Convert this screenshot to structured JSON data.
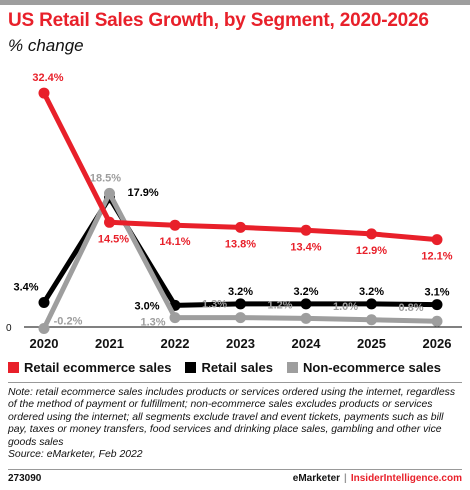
{
  "header": {
    "title": "US Retail Sales Growth, by Segment, 2020-2026",
    "subtitle": "% change"
  },
  "chart_data": {
    "type": "line",
    "title": "US Retail Sales Growth, by Segment, 2020-2026",
    "subtitle": "% change",
    "x": [
      "2020",
      "2021",
      "2022",
      "2023",
      "2024",
      "2025",
      "2026"
    ],
    "zero_label": "0",
    "ylim": [
      -1,
      34
    ],
    "grid": false,
    "legend_position": "bottom",
    "series": [
      {
        "name": "Retail ecommerce sales",
        "color": "#e8202a",
        "values": [
          32.4,
          14.5,
          14.1,
          13.8,
          13.4,
          12.9,
          12.1
        ],
        "labels": [
          "32.4%",
          "14.5%",
          "14.1%",
          "13.8%",
          "13.4%",
          "12.9%",
          "12.1%"
        ]
      },
      {
        "name": "Retail sales",
        "color": "#000000",
        "values": [
          3.4,
          17.9,
          3.0,
          3.2,
          3.2,
          3.2,
          3.1
        ],
        "labels": [
          "3.4%",
          "17.9%",
          "3.0%",
          "3.2%",
          "3.2%",
          "3.2%",
          "3.1%"
        ]
      },
      {
        "name": "Non-ecommerce sales",
        "color": "#9e9e9e",
        "values": [
          -0.2,
          18.5,
          1.3,
          1.3,
          1.2,
          1.0,
          0.8
        ],
        "labels": [
          "-0.2%",
          "18.5%",
          "1.3%",
          "1.3%",
          "1.2%",
          "1.0%",
          "0.8%"
        ]
      }
    ]
  },
  "note": {
    "text": "Note: retail ecommerce sales includes products or services ordered using the internet, regardless of the method of payment or fulfillment; non-ecommerce sales excludes products or services ordered using the internet; all segments exclude travel and event tickets, payments such as bill pay, taxes or money transfers, food services and drinking place sales, gambling and other vice goods sales",
    "source": "Source: eMarketer, Feb 2022"
  },
  "footer": {
    "id": "273090",
    "brand": "eMarketer",
    "separator": "|",
    "site": "InsiderIntelligence.com"
  }
}
